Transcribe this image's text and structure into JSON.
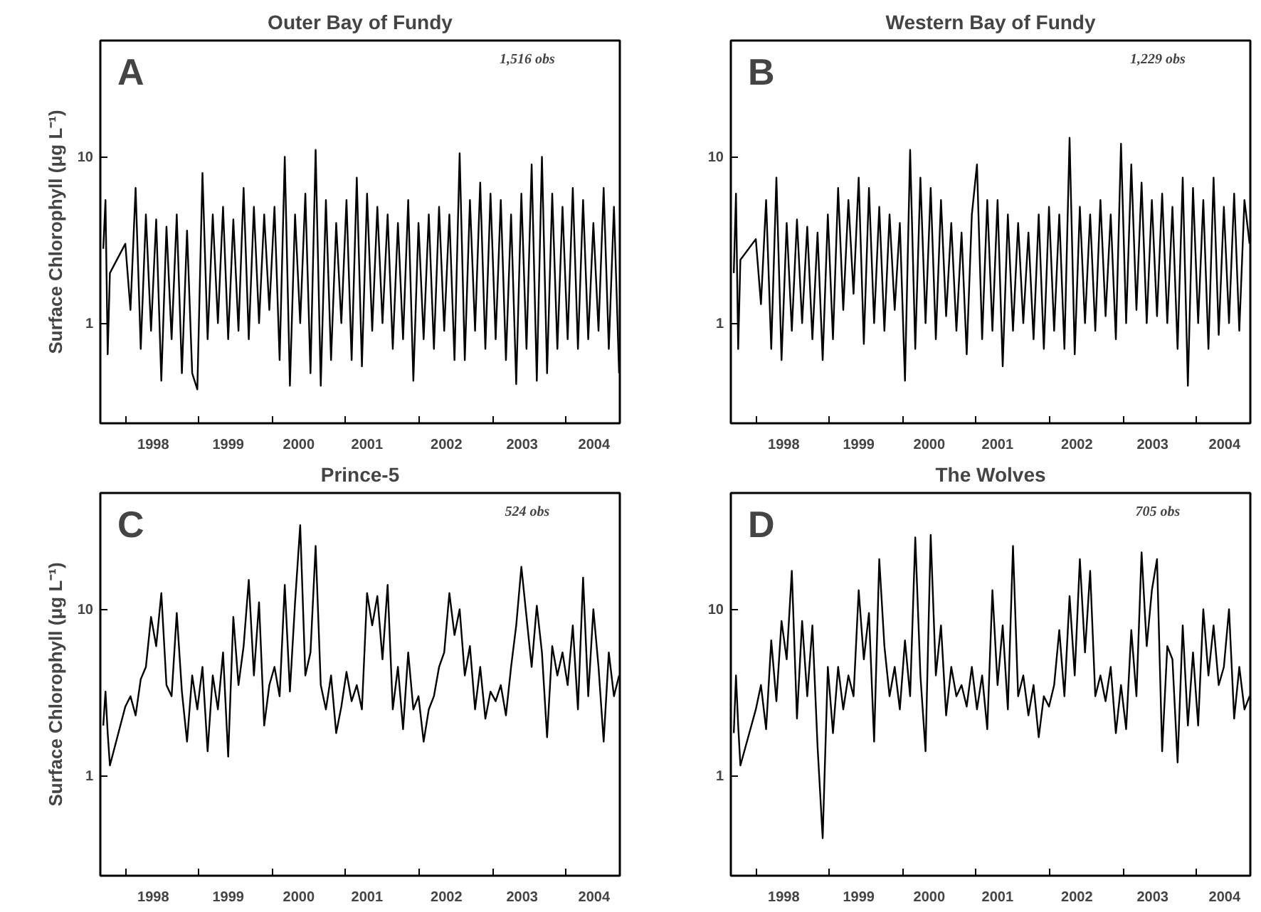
{
  "chart_data": [
    {
      "type": "line",
      "title": "Outer Bay of Fundy",
      "ylabel": "Surface Chlorophyll (μg L⁻¹)",
      "log": "y",
      "xlim": [
        1997.66,
        2004.73
      ],
      "ylim": [
        0.25,
        50
      ],
      "yticks": [
        1,
        10
      ],
      "xticks": [
        {
          "value": 1998,
          "label": null
        },
        {
          "value": 1999,
          "label": null
        },
        {
          "value": 2000,
          "label": null
        },
        {
          "value": 2001,
          "label": null
        },
        {
          "value": 2002,
          "label": null
        },
        {
          "value": 2003,
          "label": null
        },
        {
          "value": 2004,
          "label": null
        },
        {
          "value": 1998.38,
          "label": "1998"
        },
        {
          "value": 1999.4,
          "label": "1999"
        },
        {
          "value": 2000.36,
          "label": "2000"
        },
        {
          "value": 2001.29,
          "label": "2001"
        },
        {
          "value": 2002.37,
          "label": "2002"
        },
        {
          "value": 2003.4,
          "label": "2003"
        },
        {
          "value": 2004.38,
          "label": "2004"
        }
      ],
      "annotations": [
        "A",
        "1,516 obs"
      ],
      "series": [
        {
          "color": "#000000",
          "x": [
            1997.7,
            1997.73,
            1997.76,
            1997.79,
            1998.0,
            1998.07,
            1998.14,
            1998.21,
            1998.28,
            1998.35,
            1998.42,
            1998.49,
            1998.56,
            1998.63,
            1998.7,
            1998.77,
            1998.84,
            1998.91,
            1998.98,
            1999.05,
            1999.12,
            1999.19,
            1999.26,
            1999.33,
            1999.4,
            1999.47,
            1999.54,
            1999.61,
            1999.68,
            1999.75,
            1999.82,
            1999.89,
            1999.96,
            2000.03,
            2000.1,
            2000.17,
            2000.24,
            2000.31,
            2000.38,
            2000.45,
            2000.52,
            2000.59,
            2000.66,
            2000.73,
            2000.8,
            2000.87,
            2000.94,
            2001.01,
            2001.08,
            2001.15,
            2001.22,
            2001.29,
            2001.36,
            2001.43,
            2001.5,
            2001.57,
            2001.64,
            2001.71,
            2001.78,
            2001.85,
            2001.92,
            2001.99,
            2002.06,
            2002.13,
            2002.2,
            2002.27,
            2002.34,
            2002.41,
            2002.48,
            2002.55,
            2002.62,
            2002.69,
            2002.76,
            2002.83,
            2002.9,
            2002.97,
            2003.04,
            2003.11,
            2003.18,
            2003.25,
            2003.32,
            2003.39,
            2003.46,
            2003.53,
            2003.6,
            2003.67,
            2003.74,
            2003.81,
            2003.88,
            2003.95,
            2004.02,
            2004.09,
            2004.16,
            2004.23,
            2004.3,
            2004.37,
            2004.44,
            2004.51,
            2004.58,
            2004.65,
            2004.72
          ],
          "values": [
            2.8,
            5.5,
            0.65,
            2.0,
            3.0,
            1.2,
            6.5,
            0.7,
            4.5,
            0.9,
            4.2,
            0.45,
            3.8,
            0.8,
            4.5,
            0.5,
            3.6,
            0.5,
            0.4,
            8.0,
            0.8,
            4.5,
            1.0,
            5.0,
            0.8,
            4.2,
            0.9,
            6.5,
            0.8,
            5.0,
            1.0,
            4.5,
            1.2,
            5.0,
            0.6,
            10.0,
            0.42,
            4.5,
            1.0,
            6.0,
            0.5,
            11.0,
            0.42,
            5.5,
            0.6,
            4.0,
            1.0,
            5.5,
            0.6,
            7.5,
            0.55,
            6.0,
            0.9,
            5.0,
            1.0,
            4.5,
            0.7,
            4.0,
            0.8,
            5.5,
            0.45,
            4.0,
            0.8,
            4.5,
            0.7,
            5.0,
            0.9,
            4.5,
            0.6,
            10.5,
            0.6,
            5.5,
            0.9,
            7.0,
            0.7,
            6.0,
            0.8,
            5.5,
            0.6,
            4.5,
            0.43,
            6.0,
            0.7,
            9.0,
            0.45,
            10.0,
            0.5,
            6.0,
            0.7,
            5.0,
            0.8,
            6.5,
            0.7,
            5.5,
            0.8,
            4.0,
            0.9,
            6.5,
            0.7,
            5.0,
            0.5
          ]
        }
      ]
    },
    {
      "type": "line",
      "title": "Western Bay of Fundy",
      "log": "y",
      "xlim": [
        1997.66,
        2004.73
      ],
      "ylim": [
        0.25,
        50
      ],
      "yticks": [
        1,
        10
      ],
      "xticks": [
        {
          "value": 1998,
          "label": null
        },
        {
          "value": 1999,
          "label": null
        },
        {
          "value": 2000,
          "label": null
        },
        {
          "value": 2001,
          "label": null
        },
        {
          "value": 2002,
          "label": null
        },
        {
          "value": 2003,
          "label": null
        },
        {
          "value": 2004,
          "label": null
        },
        {
          "value": 1998.38,
          "label": "1998"
        },
        {
          "value": 1999.4,
          "label": "1999"
        },
        {
          "value": 2000.36,
          "label": "2000"
        },
        {
          "value": 2001.29,
          "label": "2001"
        },
        {
          "value": 2002.37,
          "label": "2002"
        },
        {
          "value": 2003.4,
          "label": "2003"
        },
        {
          "value": 2004.38,
          "label": "2004"
        }
      ],
      "annotations": [
        "B",
        "1,229 obs"
      ],
      "series": [
        {
          "color": "#000000",
          "x": [
            1997.7,
            1997.73,
            1997.76,
            1997.79,
            1998.0,
            1998.07,
            1998.14,
            1998.21,
            1998.28,
            1998.35,
            1998.42,
            1998.49,
            1998.56,
            1998.63,
            1998.7,
            1998.77,
            1998.84,
            1998.91,
            1998.98,
            1999.05,
            1999.12,
            1999.19,
            1999.26,
            1999.33,
            1999.4,
            1999.47,
            1999.54,
            1999.61,
            1999.68,
            1999.75,
            1999.82,
            1999.89,
            1999.96,
            2000.03,
            2000.1,
            2000.17,
            2000.24,
            2000.31,
            2000.38,
            2000.45,
            2000.52,
            2000.59,
            2000.66,
            2000.73,
            2000.8,
            2000.87,
            2000.94,
            2001.01,
            2001.08,
            2001.15,
            2001.22,
            2001.29,
            2001.36,
            2001.43,
            2001.5,
            2001.57,
            2001.64,
            2001.71,
            2001.78,
            2001.85,
            2001.92,
            2001.99,
            2002.06,
            2002.13,
            2002.2,
            2002.27,
            2002.34,
            2002.41,
            2002.48,
            2002.55,
            2002.62,
            2002.69,
            2002.76,
            2002.83,
            2002.9,
            2002.97,
            2003.04,
            2003.11,
            2003.18,
            2003.25,
            2003.32,
            2003.39,
            2003.46,
            2003.53,
            2003.6,
            2003.67,
            2003.74,
            2003.81,
            2003.88,
            2003.95,
            2004.02,
            2004.09,
            2004.16,
            2004.23,
            2004.3,
            2004.37,
            2004.44,
            2004.51,
            2004.58,
            2004.65,
            2004.72
          ],
          "values": [
            2.0,
            6.0,
            0.7,
            2.4,
            3.2,
            1.3,
            5.5,
            0.7,
            7.5,
            0.6,
            4.0,
            0.9,
            4.2,
            1.0,
            3.8,
            0.8,
            3.5,
            0.6,
            4.5,
            0.8,
            6.5,
            1.2,
            5.5,
            1.5,
            7.5,
            0.75,
            6.5,
            1.0,
            5.0,
            0.9,
            4.5,
            1.2,
            4.0,
            0.45,
            11.0,
            0.7,
            7.5,
            1.0,
            6.5,
            0.8,
            5.5,
            1.1,
            4.0,
            0.9,
            3.5,
            0.65,
            4.5,
            9.0,
            0.8,
            5.5,
            0.9,
            5.5,
            0.55,
            4.5,
            0.9,
            4.0,
            1.0,
            3.5,
            0.8,
            4.5,
            0.7,
            5.0,
            0.9,
            4.5,
            0.7,
            13.0,
            0.65,
            5.0,
            1.0,
            4.5,
            0.9,
            5.5,
            1.1,
            4.5,
            0.8,
            12.0,
            1.0,
            9.0,
            1.2,
            7.0,
            1.0,
            5.5,
            1.1,
            6.0,
            1.0,
            5.0,
            0.7,
            7.5,
            0.42,
            6.5,
            1.0,
            5.5,
            0.7,
            7.5,
            0.85,
            5.0,
            1.0,
            6.0,
            0.9,
            5.5,
            3.0
          ]
        }
      ]
    },
    {
      "type": "line",
      "title": "Prince-5",
      "ylabel": "Surface Chlorophyll (μg L⁻¹)",
      "log": "y",
      "xlim": [
        1997.66,
        2004.73
      ],
      "ylim": [
        0.25,
        50
      ],
      "yticks": [
        1,
        10
      ],
      "xticks": [
        {
          "value": 1998,
          "label": null
        },
        {
          "value": 1999,
          "label": null
        },
        {
          "value": 2000,
          "label": null
        },
        {
          "value": 2001,
          "label": null
        },
        {
          "value": 2002,
          "label": null
        },
        {
          "value": 2003,
          "label": null
        },
        {
          "value": 2004,
          "label": null
        },
        {
          "value": 1998.38,
          "label": "1998"
        },
        {
          "value": 1999.4,
          "label": "1999"
        },
        {
          "value": 2000.36,
          "label": "2000"
        },
        {
          "value": 2001.29,
          "label": "2001"
        },
        {
          "value": 2002.37,
          "label": "2002"
        },
        {
          "value": 2003.4,
          "label": "2003"
        },
        {
          "value": 2004.38,
          "label": "2004"
        }
      ],
      "annotations": [
        "C",
        "524 obs"
      ],
      "series": [
        {
          "color": "#000000",
          "x": [
            1997.7,
            1997.73,
            1997.76,
            1997.79,
            1998.0,
            1998.07,
            1998.14,
            1998.21,
            1998.28,
            1998.35,
            1998.42,
            1998.49,
            1998.56,
            1998.63,
            1998.7,
            1998.77,
            1998.84,
            1998.91,
            1998.98,
            1999.05,
            1999.12,
            1999.19,
            1999.26,
            1999.33,
            1999.4,
            1999.47,
            1999.54,
            1999.61,
            1999.68,
            1999.75,
            1999.82,
            1999.89,
            1999.96,
            2000.03,
            2000.1,
            2000.17,
            2000.24,
            2000.31,
            2000.38,
            2000.45,
            2000.52,
            2000.59,
            2000.66,
            2000.73,
            2000.8,
            2000.87,
            2000.94,
            2001.01,
            2001.08,
            2001.15,
            2001.22,
            2001.29,
            2001.36,
            2001.43,
            2001.5,
            2001.57,
            2001.64,
            2001.71,
            2001.78,
            2001.85,
            2001.92,
            2001.99,
            2002.06,
            2002.13,
            2002.2,
            2002.27,
            2002.34,
            2002.41,
            2002.48,
            2002.55,
            2002.62,
            2002.69,
            2002.76,
            2002.83,
            2002.9,
            2002.97,
            2003.04,
            2003.11,
            2003.18,
            2003.25,
            2003.32,
            2003.39,
            2003.46,
            2003.53,
            2003.6,
            2003.67,
            2003.74,
            2003.81,
            2003.88,
            2003.95,
            2004.02,
            2004.09,
            2004.16,
            2004.23,
            2004.3,
            2004.37,
            2004.44,
            2004.51,
            2004.58,
            2004.65,
            2004.72
          ],
          "values": [
            2.0,
            3.2,
            1.8,
            1.15,
            2.6,
            3.0,
            2.3,
            3.8,
            4.5,
            9.0,
            6.0,
            12.5,
            3.5,
            3.0,
            9.5,
            3.2,
            1.6,
            4.0,
            2.5,
            4.5,
            1.4,
            4.0,
            2.5,
            5.5,
            1.3,
            9.0,
            3.5,
            6.0,
            15.0,
            4.0,
            11.0,
            2.0,
            3.5,
            4.5,
            3.0,
            14.0,
            3.2,
            11.0,
            32.0,
            4.0,
            5.5,
            24.0,
            3.5,
            2.5,
            4.0,
            1.8,
            2.6,
            4.2,
            2.8,
            3.5,
            2.5,
            12.5,
            8.0,
            12.0,
            5.0,
            14.0,
            2.5,
            4.5,
            1.9,
            5.5,
            2.5,
            3.0,
            1.6,
            2.5,
            3.0,
            4.5,
            5.5,
            12.5,
            7.0,
            10.0,
            4.0,
            6.0,
            2.5,
            4.5,
            2.2,
            3.2,
            2.8,
            3.5,
            2.3,
            4.5,
            8.0,
            18.0,
            9.0,
            4.5,
            10.5,
            5.5,
            1.7,
            6.0,
            4.0,
            5.5,
            3.5,
            8.0,
            2.5,
            15.5,
            3.0,
            10.0,
            4.5,
            1.6,
            5.5,
            3.0,
            4.0
          ]
        }
      ]
    },
    {
      "type": "line",
      "title": "The Wolves",
      "log": "y",
      "xlim": [
        1997.66,
        2004.73
      ],
      "ylim": [
        0.25,
        50
      ],
      "yticks": [
        1,
        10
      ],
      "xticks": [
        {
          "value": 1998,
          "label": null
        },
        {
          "value": 1999,
          "label": null
        },
        {
          "value": 2000,
          "label": null
        },
        {
          "value": 2001,
          "label": null
        },
        {
          "value": 2002,
          "label": null
        },
        {
          "value": 2003,
          "label": null
        },
        {
          "value": 2004,
          "label": null
        },
        {
          "value": 1998.38,
          "label": "1998"
        },
        {
          "value": 1999.4,
          "label": "1999"
        },
        {
          "value": 2000.36,
          "label": "2000"
        },
        {
          "value": 2001.29,
          "label": "2001"
        },
        {
          "value": 2002.37,
          "label": "2002"
        },
        {
          "value": 2003.4,
          "label": "2003"
        },
        {
          "value": 2004.38,
          "label": "2004"
        }
      ],
      "annotations": [
        "D",
        "705 obs"
      ],
      "series": [
        {
          "color": "#000000",
          "x": [
            1997.7,
            1997.73,
            1997.76,
            1997.79,
            1998.0,
            1998.07,
            1998.14,
            1998.21,
            1998.28,
            1998.35,
            1998.42,
            1998.49,
            1998.56,
            1998.63,
            1998.7,
            1998.77,
            1998.84,
            1998.91,
            1998.98,
            1999.05,
            1999.12,
            1999.19,
            1999.26,
            1999.33,
            1999.4,
            1999.47,
            1999.54,
            1999.61,
            1999.68,
            1999.75,
            1999.82,
            1999.89,
            1999.96,
            2000.03,
            2000.1,
            2000.17,
            2000.24,
            2000.31,
            2000.38,
            2000.45,
            2000.52,
            2000.59,
            2000.66,
            2000.73,
            2000.8,
            2000.87,
            2000.94,
            2001.01,
            2001.08,
            2001.15,
            2001.22,
            2001.29,
            2001.36,
            2001.43,
            2001.5,
            2001.57,
            2001.64,
            2001.71,
            2001.78,
            2001.85,
            2001.92,
            2001.99,
            2002.06,
            2002.13,
            2002.2,
            2002.27,
            2002.34,
            2002.41,
            2002.48,
            2002.55,
            2002.62,
            2002.69,
            2002.76,
            2002.83,
            2002.9,
            2002.97,
            2003.04,
            2003.11,
            2003.18,
            2003.25,
            2003.32,
            2003.39,
            2003.46,
            2003.53,
            2003.6,
            2003.67,
            2003.74,
            2003.81,
            2003.88,
            2003.95,
            2004.02,
            2004.09,
            2004.16,
            2004.23,
            2004.3,
            2004.37,
            2004.44,
            2004.51,
            2004.58,
            2004.65,
            2004.72
          ],
          "values": [
            1.8,
            4.0,
            2.0,
            1.15,
            2.5,
            3.5,
            1.9,
            6.5,
            2.8,
            8.5,
            5.0,
            17.0,
            2.2,
            8.5,
            3.0,
            8.0,
            1.5,
            0.42,
            4.5,
            1.8,
            4.5,
            2.5,
            4.0,
            3.0,
            13.0,
            5.0,
            9.5,
            1.6,
            20.0,
            6.0,
            3.0,
            4.5,
            2.5,
            6.5,
            3.0,
            27.0,
            4.0,
            1.4,
            28.0,
            4.0,
            8.0,
            2.3,
            4.5,
            3.0,
            3.5,
            2.6,
            4.5,
            2.5,
            4.0,
            1.9,
            13.0,
            3.5,
            8.0,
            2.5,
            24.0,
            3.0,
            4.0,
            2.3,
            3.5,
            1.7,
            3.0,
            2.6,
            3.5,
            7.5,
            3.0,
            12.0,
            4.0,
            20.0,
            5.5,
            17.0,
            3.0,
            4.0,
            2.8,
            4.5,
            1.8,
            3.5,
            1.9,
            7.5,
            3.0,
            22.0,
            6.0,
            13.0,
            20.0,
            1.4,
            6.0,
            5.0,
            1.2,
            8.0,
            2.0,
            5.5,
            2.0,
            10.0,
            4.0,
            8.0,
            3.5,
            4.5,
            10.0,
            2.2,
            4.5,
            2.5,
            3.0
          ]
        }
      ]
    }
  ]
}
